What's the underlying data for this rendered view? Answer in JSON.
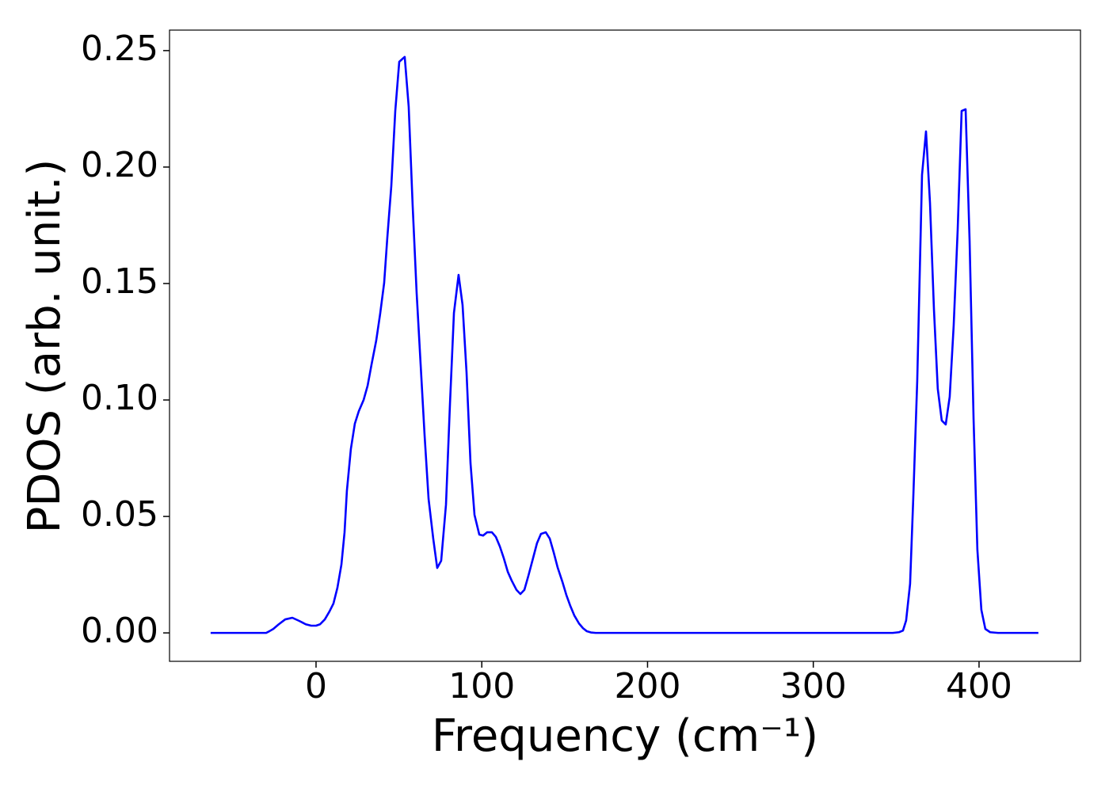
{
  "chart_data": {
    "type": "line",
    "xlabel": "Frequency (cm⁻¹)",
    "ylabel": "PDOS (arb. unit.)",
    "color": "#0000ff",
    "x": [
      -63.6,
      -30.1,
      -28.2,
      -25.8,
      -22.5,
      -18.6,
      -14.3,
      -10.0,
      -6.2,
      -2.9,
      0,
      2.4,
      5.3,
      8.1,
      10.5,
      12.9,
      15.3,
      17.2,
      18.6,
      21.0,
      23.4,
      25.8,
      28.7,
      31.1,
      33.5,
      36.3,
      38.7,
      41.1,
      43.0,
      45.4,
      47.8,
      50.2,
      53.5,
      55.9,
      58.3,
      60.7,
      63.1,
      65.5,
      67.9,
      70.7,
      73.1,
      75.5,
      78.4,
      80.8,
      83.2,
      86.0,
      88.4,
      90.8,
      93.2,
      95.6,
      98.5,
      100.8,
      103.2,
      106.1,
      108.5,
      110.9,
      113.3,
      115.7,
      118.0,
      120.9,
      123.3,
      125.7,
      128.1,
      130.9,
      133.3,
      135.7,
      138.6,
      141.0,
      143.4,
      145.8,
      148.6,
      151.0,
      153.4,
      155.8,
      158.7,
      161.1,
      163.4,
      165.8,
      168.7,
      172.5,
      347.9,
      351.7,
      354.1,
      356.0,
      358.4,
      360.3,
      362.7,
      365.6,
      368.0,
      370.4,
      372.8,
      375.1,
      377.5,
      379.9,
      382.3,
      384.7,
      387.1,
      389.5,
      391.9,
      394.3,
      396.7,
      399.0,
      401.4,
      403.8,
      406.7,
      411.5,
      435.8
    ],
    "values": [
      0,
      0,
      0.0007,
      0.0017,
      0.0037,
      0.0058,
      0.0065,
      0.0051,
      0.0037,
      0.0031,
      0.0031,
      0.0037,
      0.0058,
      0.0092,
      0.0126,
      0.0194,
      0.0293,
      0.0432,
      0.0609,
      0.0789,
      0.0898,
      0.0952,
      0.1,
      0.1061,
      0.1153,
      0.1255,
      0.1371,
      0.1503,
      0.1697,
      0.1918,
      0.2241,
      0.2452,
      0.2473,
      0.2259,
      0.1833,
      0.1459,
      0.1153,
      0.0847,
      0.0575,
      0.0405,
      0.0279,
      0.031,
      0.0551,
      0.0983,
      0.1374,
      0.1537,
      0.1408,
      0.1119,
      0.0728,
      0.0507,
      0.0422,
      0.0418,
      0.0432,
      0.0432,
      0.0412,
      0.0371,
      0.032,
      0.0262,
      0.0225,
      0.0185,
      0.0167,
      0.0185,
      0.0245,
      0.032,
      0.0385,
      0.0425,
      0.0432,
      0.0405,
      0.0345,
      0.028,
      0.022,
      0.0163,
      0.0116,
      0.0075,
      0.004,
      0.002,
      0.0007,
      0.0002,
      0,
      0,
      0,
      0.0003,
      0.001,
      0.0053,
      0.0211,
      0.0575,
      0.108,
      0.1966,
      0.2153,
      0.1847,
      0.1388,
      0.1048,
      0.0912,
      0.0895,
      0.1014,
      0.132,
      0.1728,
      0.2241,
      0.2248,
      0.1684,
      0.0918,
      0.0357,
      0.0099,
      0.0017,
      0.0003,
      0,
      0
    ],
    "xlim": [
      -88.4,
      461.2
    ],
    "ylim": [
      -0.0122,
      0.2588
    ],
    "xticks": [
      0,
      100,
      200,
      300,
      400
    ],
    "yticks": [
      {
        "value": 0,
        "label": "0.00"
      },
      0.05,
      {
        "value": 0.1,
        "label": "0.10"
      },
      0.15,
      {
        "value": 0.2,
        "label": "0.20"
      },
      0.25
    ],
    "grid": false
  }
}
